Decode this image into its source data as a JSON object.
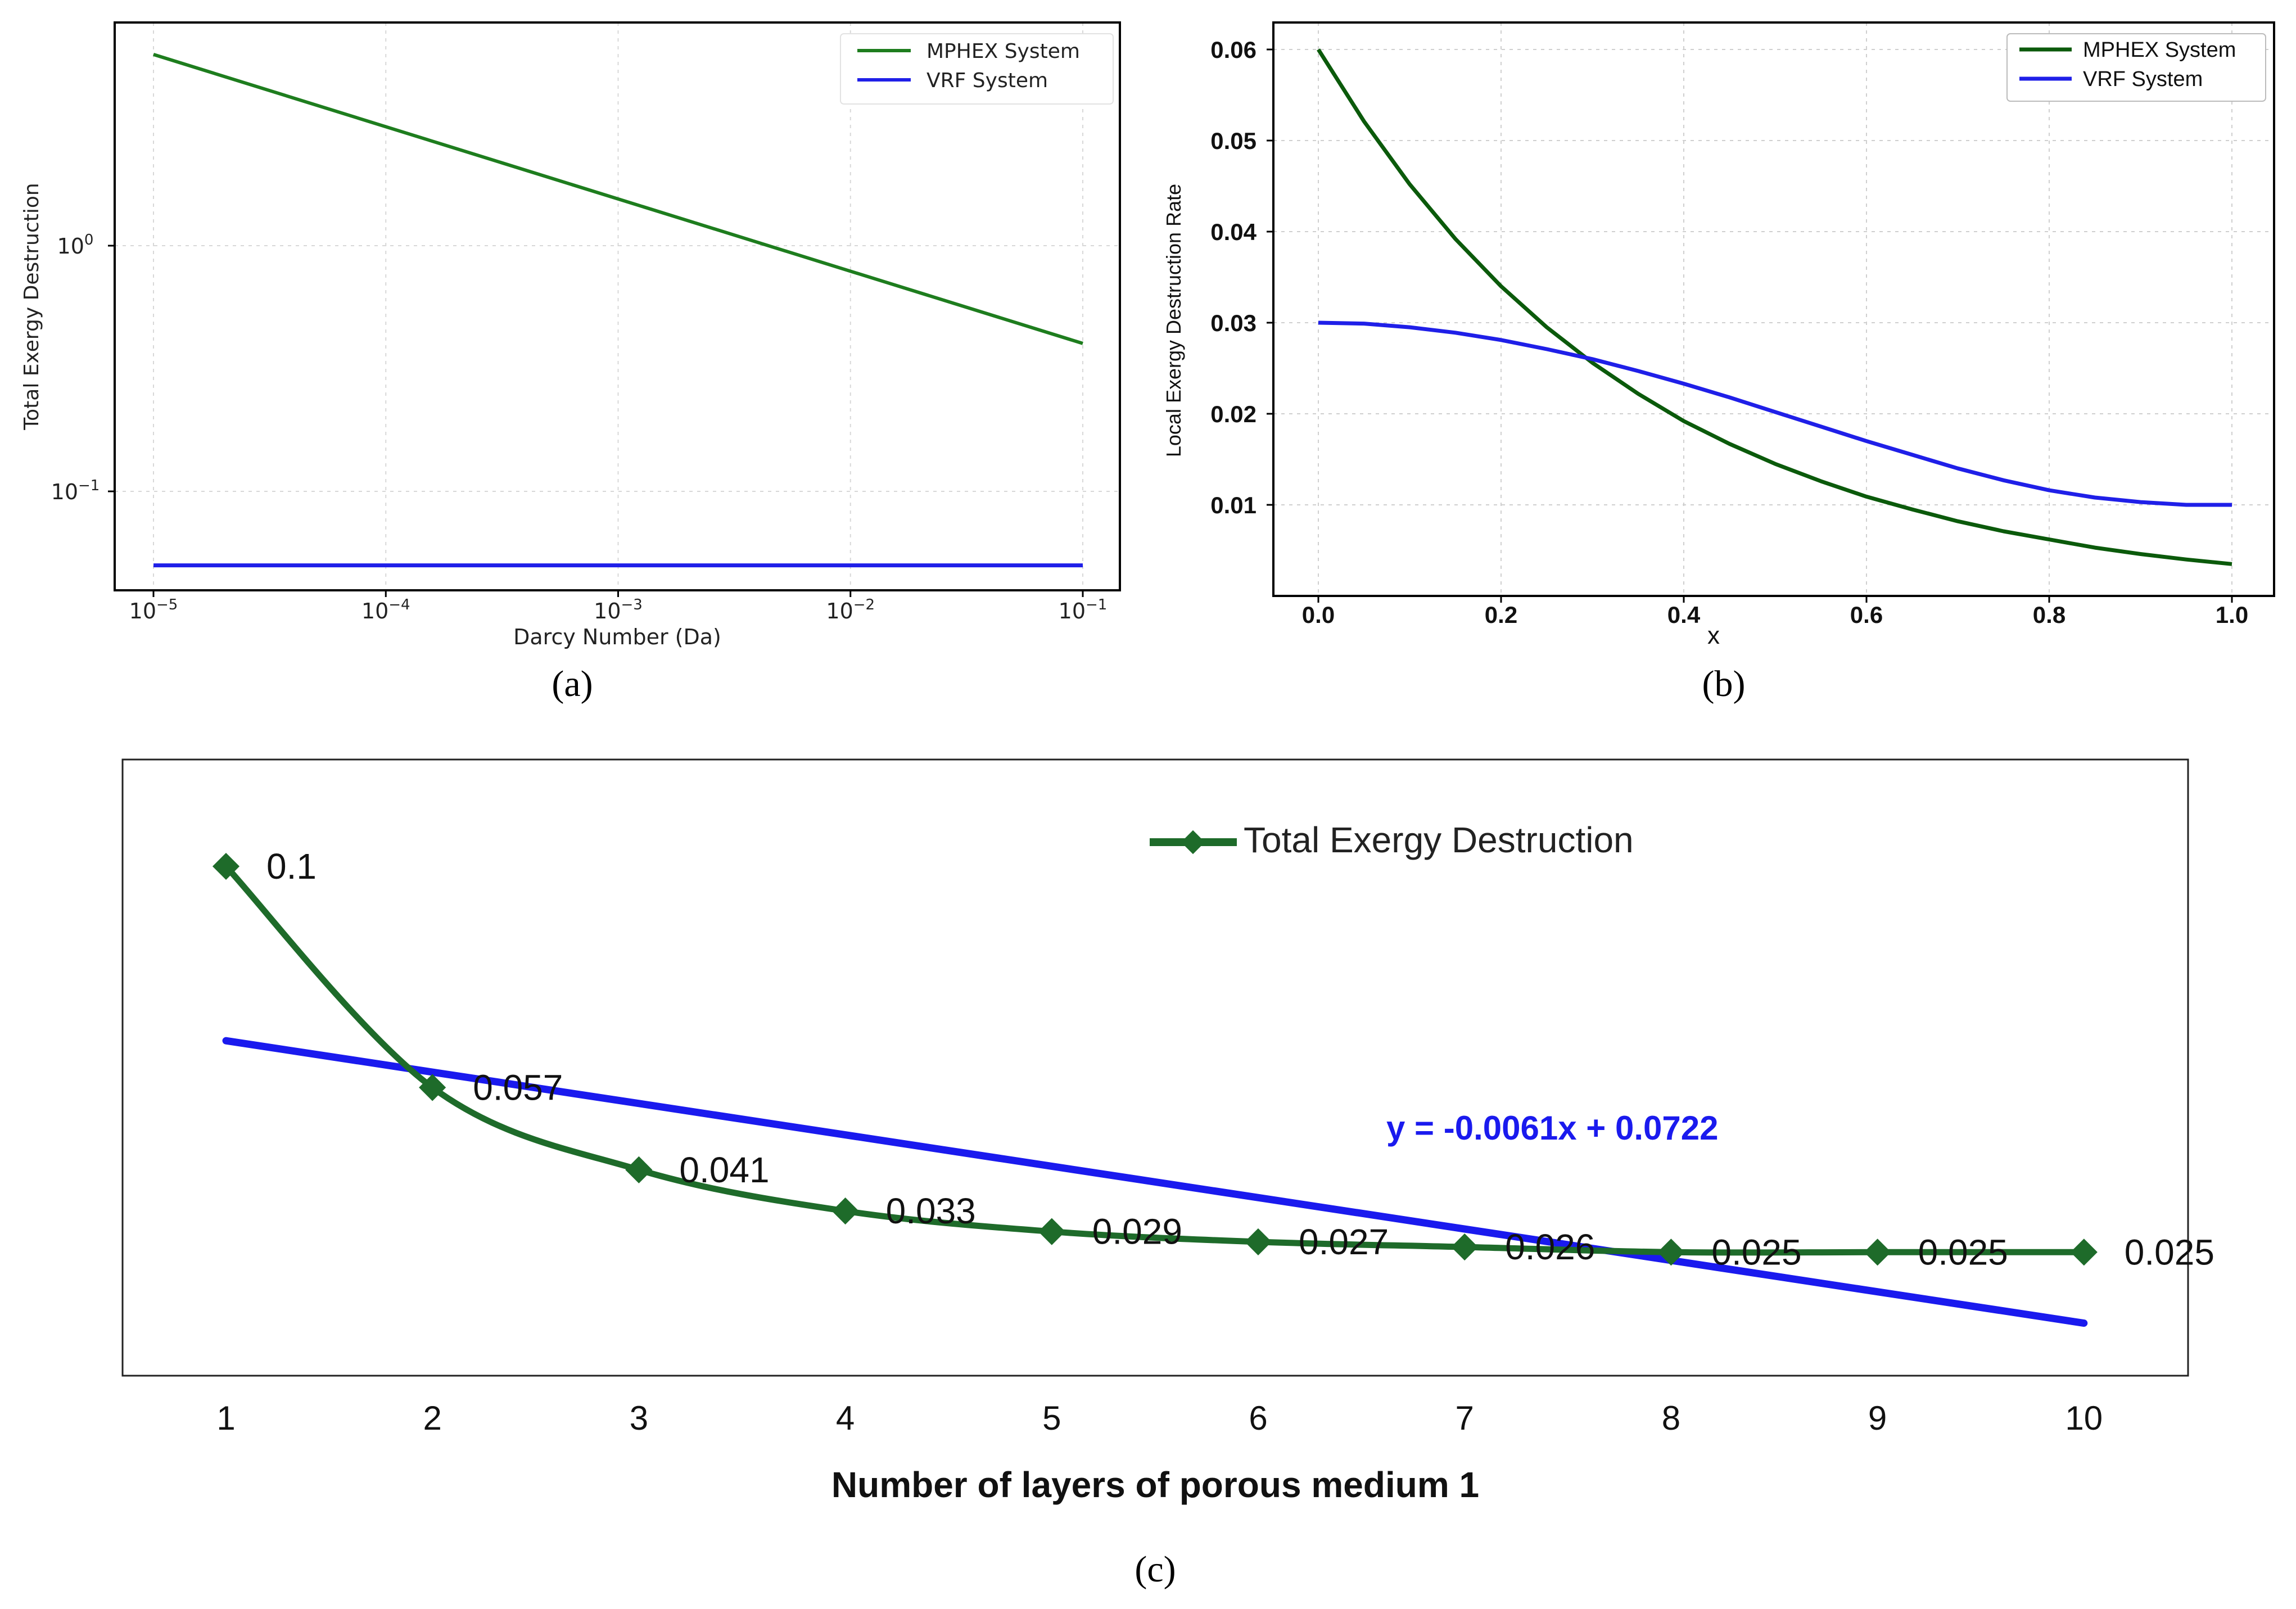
{
  "chart_data": [
    {
      "id": "a",
      "type": "line",
      "panel_label": "(a)",
      "xlabel": "Darcy Number (Da)",
      "ylabel": "Total Exergy Destruction",
      "xscale": "log",
      "yscale": "log",
      "xlim": [
        1e-05,
        0.1
      ],
      "ylim": [
        0.045,
        7
      ],
      "x_ticks": [
        {
          "value": 1e-05,
          "base": "10",
          "exp": "−5"
        },
        {
          "value": 0.0001,
          "base": "10",
          "exp": "−4"
        },
        {
          "value": 0.001,
          "base": "10",
          "exp": "−3"
        },
        {
          "value": 0.01,
          "base": "10",
          "exp": "−2"
        },
        {
          "value": 0.1,
          "base": "10",
          "exp": "−1"
        }
      ],
      "y_ticks": [
        {
          "value": 1,
          "base": "10",
          "exp": "0"
        },
        {
          "value": 0.1,
          "base": "10",
          "exp": "−1"
        }
      ],
      "grid": true,
      "legend_position": "top-right",
      "series": [
        {
          "name": "MPHEX System",
          "color": "#1e7d1e",
          "x": [
            1e-05,
            0.1
          ],
          "y": [
            6.0,
            0.4
          ]
        },
        {
          "name": "VRF System",
          "color": "#1f1fe8",
          "x": [
            1e-05,
            0.1
          ],
          "y": [
            0.05,
            0.05
          ]
        }
      ]
    },
    {
      "id": "b",
      "type": "line",
      "panel_label": "(b)",
      "xlabel": "x",
      "ylabel": "Local Exergy Destruction Rate",
      "xlim": [
        -0.05,
        1.04
      ],
      "ylim": [
        0.0,
        0.0625
      ],
      "x_ticks": [
        "0.0",
        "0.2",
        "0.4",
        "0.6",
        "0.8",
        "1.0"
      ],
      "y_ticks": [
        "0.01",
        "0.02",
        "0.03",
        "0.04",
        "0.05",
        "0.06"
      ],
      "grid": true,
      "legend_position": "top-right",
      "series": [
        {
          "name": "MPHEX System",
          "color": "#0b5a0b",
          "x": [
            0,
            0.05,
            0.1,
            0.15,
            0.2,
            0.25,
            0.3,
            0.35,
            0.4,
            0.45,
            0.5,
            0.55,
            0.6,
            0.65,
            0.7,
            0.75,
            0.8,
            0.85,
            0.9,
            0.95,
            1.0
          ],
          "y": [
            0.06,
            0.0521,
            0.0452,
            0.0392,
            0.034,
            0.0295,
            0.0256,
            0.0222,
            0.0192,
            0.0167,
            0.0145,
            0.0126,
            0.0109,
            0.0095,
            0.0082,
            0.0071,
            0.0062,
            0.0053,
            0.0046,
            0.004,
            0.0035
          ]
        },
        {
          "name": "VRF System",
          "color": "#1f1fe8",
          "x": [
            0,
            0.05,
            0.1,
            0.15,
            0.2,
            0.25,
            0.3,
            0.35,
            0.4,
            0.45,
            0.5,
            0.55,
            0.6,
            0.65,
            0.7,
            0.75,
            0.8,
            0.85,
            0.9,
            0.95,
            1.0
          ],
          "y": [
            0.03,
            0.0299,
            0.0295,
            0.0289,
            0.0281,
            0.0271,
            0.026,
            0.0247,
            0.0233,
            0.0218,
            0.0202,
            0.0186,
            0.017,
            0.0155,
            0.014,
            0.0127,
            0.0116,
            0.0108,
            0.0103,
            0.01,
            0.01
          ]
        }
      ]
    },
    {
      "id": "c",
      "type": "line",
      "panel_label": "(c)",
      "xlabel": "Number of layers of porous medium 1",
      "ylabel": "",
      "x_ticks": [
        "1",
        "2",
        "3",
        "4",
        "5",
        "6",
        "7",
        "8",
        "9",
        "10"
      ],
      "ylim": [
        0.0,
        0.11
      ],
      "grid": false,
      "legend_position": "top-center",
      "series": [
        {
          "name": "Total Exergy Destruction",
          "color": "#1e6b2a",
          "x": [
            1,
            2,
            3,
            4,
            5,
            6,
            7,
            8,
            9,
            10
          ],
          "y": [
            0.1,
            0.057,
            0.041,
            0.033,
            0.029,
            0.027,
            0.026,
            0.025,
            0.025,
            0.025
          ],
          "data_labels": [
            "0.1",
            "0.057",
            "0.041",
            "0.033",
            "0.029",
            "0.027",
            "0.026",
            "0.025",
            "0.025",
            "0.025"
          ]
        }
      ],
      "trendline": {
        "color": "#1a1aee",
        "slope": -0.0061,
        "intercept": 0.0722,
        "equation": "y = -0.0061x + 0.0722"
      }
    }
  ]
}
